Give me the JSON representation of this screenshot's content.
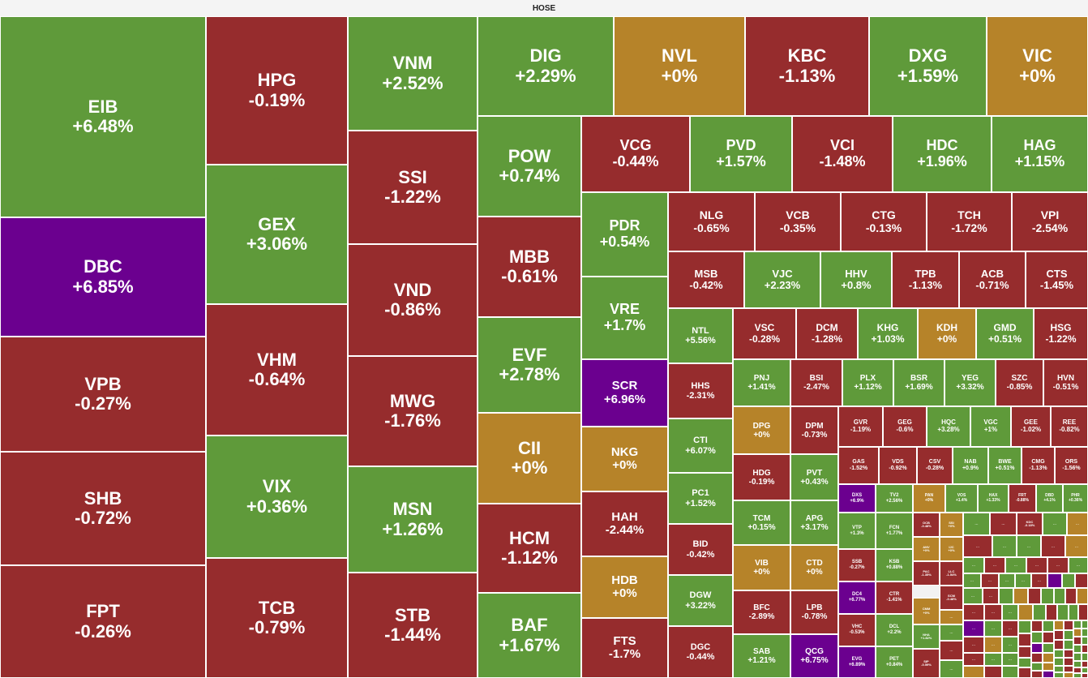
{
  "header": {
    "title": "HOSE"
  },
  "colors": {
    "up": "#5f9a3a",
    "down": "#962c2d",
    "flat": "#b68329",
    "ceiling": "#6b008f"
  },
  "ellipsis": "...",
  "tiles": [
    {
      "id": "eib",
      "sym": "EIB",
      "pct": "+6.48%",
      "c": "up"
    },
    {
      "id": "dbc",
      "sym": "DBC",
      "pct": "+6.85%",
      "c": "ceiling"
    },
    {
      "id": "vpb",
      "sym": "VPB",
      "pct": "-0.27%",
      "c": "down"
    },
    {
      "id": "shb",
      "sym": "SHB",
      "pct": "-0.72%",
      "c": "down"
    },
    {
      "id": "fpt",
      "sym": "FPT",
      "pct": "-0.26%",
      "c": "down"
    },
    {
      "id": "hpg",
      "sym": "HPG",
      "pct": "-0.19%",
      "c": "down"
    },
    {
      "id": "gex",
      "sym": "GEX",
      "pct": "+3.06%",
      "c": "up"
    },
    {
      "id": "vhm",
      "sym": "VHM",
      "pct": "-0.64%",
      "c": "down"
    },
    {
      "id": "vix",
      "sym": "VIX",
      "pct": "+0.36%",
      "c": "up"
    },
    {
      "id": "tcb",
      "sym": "TCB",
      "pct": "-0.79%",
      "c": "down"
    },
    {
      "id": "vnm",
      "sym": "VNM",
      "pct": "+2.52%",
      "c": "up"
    },
    {
      "id": "ssi",
      "sym": "SSI",
      "pct": "-1.22%",
      "c": "down"
    },
    {
      "id": "vnd",
      "sym": "VND",
      "pct": "-0.86%",
      "c": "down"
    },
    {
      "id": "mwg",
      "sym": "MWG",
      "pct": "-1.76%",
      "c": "down"
    },
    {
      "id": "msn",
      "sym": "MSN",
      "pct": "+1.26%",
      "c": "up"
    },
    {
      "id": "stb",
      "sym": "STB",
      "pct": "-1.44%",
      "c": "down"
    },
    {
      "id": "dig",
      "sym": "DIG",
      "pct": "+2.29%",
      "c": "up"
    },
    {
      "id": "pow",
      "sym": "POW",
      "pct": "+0.74%",
      "c": "up"
    },
    {
      "id": "mbb",
      "sym": "MBB",
      "pct": "-0.61%",
      "c": "down"
    },
    {
      "id": "evf",
      "sym": "EVF",
      "pct": "+2.78%",
      "c": "up"
    },
    {
      "id": "cii",
      "sym": "CII",
      "pct": "+0%",
      "c": "flat"
    },
    {
      "id": "hcm",
      "sym": "HCM",
      "pct": "-1.12%",
      "c": "down"
    },
    {
      "id": "baf",
      "sym": "BAF",
      "pct": "+1.67%",
      "c": "up"
    },
    {
      "id": "nvl",
      "sym": "NVL",
      "pct": "+0%",
      "c": "flat"
    },
    {
      "id": "kbc",
      "sym": "KBC",
      "pct": "-1.13%",
      "c": "down"
    },
    {
      "id": "dxg",
      "sym": "DXG",
      "pct": "+1.59%",
      "c": "up"
    },
    {
      "id": "vic",
      "sym": "VIC",
      "pct": "+0%",
      "c": "flat"
    },
    {
      "id": "vcg",
      "sym": "VCG",
      "pct": "-0.44%",
      "c": "down"
    },
    {
      "id": "pvd",
      "sym": "PVD",
      "pct": "+1.57%",
      "c": "up"
    },
    {
      "id": "vci",
      "sym": "VCI",
      "pct": "-1.48%",
      "c": "down"
    },
    {
      "id": "hdc",
      "sym": "HDC",
      "pct": "+1.96%",
      "c": "up"
    },
    {
      "id": "hag",
      "sym": "HAG",
      "pct": "+1.15%",
      "c": "up"
    },
    {
      "id": "pdr",
      "sym": "PDR",
      "pct": "+0.54%",
      "c": "up"
    },
    {
      "id": "vre",
      "sym": "VRE",
      "pct": "+1.7%",
      "c": "up"
    },
    {
      "id": "scr",
      "sym": "SCR",
      "pct": "+6.96%",
      "c": "ceiling"
    },
    {
      "id": "nkg",
      "sym": "NKG",
      "pct": "+0%",
      "c": "flat"
    },
    {
      "id": "hah",
      "sym": "HAH",
      "pct": "-2.44%",
      "c": "down"
    },
    {
      "id": "hdb",
      "sym": "HDB",
      "pct": "+0%",
      "c": "flat"
    },
    {
      "id": "fts",
      "sym": "FTS",
      "pct": "-1.7%",
      "c": "down"
    },
    {
      "id": "nlg",
      "sym": "NLG",
      "pct": "-0.65%",
      "c": "down"
    },
    {
      "id": "vcb",
      "sym": "VCB",
      "pct": "-0.35%",
      "c": "down"
    },
    {
      "id": "ctg",
      "sym": "CTG",
      "pct": "-0.13%",
      "c": "down"
    },
    {
      "id": "tch",
      "sym": "TCH",
      "pct": "-1.72%",
      "c": "down"
    },
    {
      "id": "vpi",
      "sym": "VPI",
      "pct": "-2.54%",
      "c": "down"
    },
    {
      "id": "msb",
      "sym": "MSB",
      "pct": "-0.42%",
      "c": "down"
    },
    {
      "id": "vjc",
      "sym": "VJC",
      "pct": "+2.23%",
      "c": "up"
    },
    {
      "id": "hhv",
      "sym": "HHV",
      "pct": "+0.8%",
      "c": "up"
    },
    {
      "id": "tpb",
      "sym": "TPB",
      "pct": "-1.13%",
      "c": "down"
    },
    {
      "id": "acb",
      "sym": "ACB",
      "pct": "-0.71%",
      "c": "down"
    },
    {
      "id": "cts",
      "sym": "CTS",
      "pct": "-1.45%",
      "c": "down"
    },
    {
      "id": "ntl",
      "sym": "NTL",
      "pct": "+5.56%",
      "c": "up"
    },
    {
      "id": "hhs",
      "sym": "HHS",
      "pct": "-2.31%",
      "c": "down"
    },
    {
      "id": "cti",
      "sym": "CTI",
      "pct": "+6.07%",
      "c": "up"
    },
    {
      "id": "pc1",
      "sym": "PC1",
      "pct": "+1.52%",
      "c": "up"
    },
    {
      "id": "bid",
      "sym": "BID",
      "pct": "-0.42%",
      "c": "down"
    },
    {
      "id": "dgw",
      "sym": "DGW",
      "pct": "+3.22%",
      "c": "up"
    },
    {
      "id": "dgc",
      "sym": "DGC",
      "pct": "-0.44%",
      "c": "down"
    },
    {
      "id": "vsc",
      "sym": "VSC",
      "pct": "-0.28%",
      "c": "down"
    },
    {
      "id": "dcm",
      "sym": "DCM",
      "pct": "-1.28%",
      "c": "down"
    },
    {
      "id": "khg",
      "sym": "KHG",
      "pct": "+1.03%",
      "c": "up"
    },
    {
      "id": "kdh",
      "sym": "KDH",
      "pct": "+0%",
      "c": "flat"
    },
    {
      "id": "gmd",
      "sym": "GMD",
      "pct": "+0.51%",
      "c": "up"
    },
    {
      "id": "hsg",
      "sym": "HSG",
      "pct": "-1.22%",
      "c": "down"
    },
    {
      "id": "pnj",
      "sym": "PNJ",
      "pct": "+1.41%",
      "c": "up"
    },
    {
      "id": "bsi",
      "sym": "BSI",
      "pct": "-2.47%",
      "c": "down"
    },
    {
      "id": "plx",
      "sym": "PLX",
      "pct": "+1.12%",
      "c": "up"
    },
    {
      "id": "bsr",
      "sym": "BSR",
      "pct": "+1.69%",
      "c": "up"
    },
    {
      "id": "yeg",
      "sym": "YEG",
      "pct": "+3.32%",
      "c": "up"
    },
    {
      "id": "szc",
      "sym": "SZC",
      "pct": "-0.85%",
      "c": "down"
    },
    {
      "id": "hvn",
      "sym": "HVN",
      "pct": "-0.51%",
      "c": "down"
    },
    {
      "id": "dpg",
      "sym": "DPG",
      "pct": "+0%",
      "c": "flat"
    },
    {
      "id": "dpm",
      "sym": "DPM",
      "pct": "-0.73%",
      "c": "down"
    },
    {
      "id": "hdg",
      "sym": "HDG",
      "pct": "-0.19%",
      "c": "down"
    },
    {
      "id": "pvt",
      "sym": "PVT",
      "pct": "+0.43%",
      "c": "up"
    },
    {
      "id": "tcm",
      "sym": "TCM",
      "pct": "+0.15%",
      "c": "up"
    },
    {
      "id": "apg",
      "sym": "APG",
      "pct": "+3.17%",
      "c": "up"
    },
    {
      "id": "vib",
      "sym": "VIB",
      "pct": "+0%",
      "c": "flat"
    },
    {
      "id": "ctd",
      "sym": "CTD",
      "pct": "+0%",
      "c": "flat"
    },
    {
      "id": "bfc",
      "sym": "BFC",
      "pct": "-2.89%",
      "c": "down"
    },
    {
      "id": "lpb",
      "sym": "LPB",
      "pct": "-0.78%",
      "c": "down"
    },
    {
      "id": "sab",
      "sym": "SAB",
      "pct": "+1.21%",
      "c": "up"
    },
    {
      "id": "qcg",
      "sym": "QCG",
      "pct": "+6.75%",
      "c": "ceiling"
    },
    {
      "id": "gvr",
      "sym": "GVR",
      "pct": "-1.19%",
      "c": "down"
    },
    {
      "id": "geg",
      "sym": "GEG",
      "pct": "-0.6%",
      "c": "down"
    },
    {
      "id": "hqc",
      "sym": "HQC",
      "pct": "+3.28%",
      "c": "up"
    },
    {
      "id": "vgc",
      "sym": "VGC",
      "pct": "+1%",
      "c": "up"
    },
    {
      "id": "gee",
      "sym": "GEE",
      "pct": "-1.02%",
      "c": "down"
    },
    {
      "id": "ree",
      "sym": "REE",
      "pct": "-0.82%",
      "c": "down"
    },
    {
      "id": "gas",
      "sym": "GAS",
      "pct": "-1.52%",
      "c": "down"
    },
    {
      "id": "vds",
      "sym": "VDS",
      "pct": "-0.92%",
      "c": "down"
    },
    {
      "id": "csv",
      "sym": "CSV",
      "pct": "-0.28%",
      "c": "down"
    },
    {
      "id": "nab",
      "sym": "NAB",
      "pct": "+0.9%",
      "c": "up"
    },
    {
      "id": "bwe",
      "sym": "BWE",
      "pct": "+0.51%",
      "c": "up"
    },
    {
      "id": "cmg",
      "sym": "CMG",
      "pct": "-1.13%",
      "c": "down"
    },
    {
      "id": "ors",
      "sym": "ORS",
      "pct": "-1.56%",
      "c": "down"
    },
    {
      "id": "dxs",
      "sym": "DXS",
      "pct": "+6.9%",
      "c": "ceiling"
    },
    {
      "id": "tv2",
      "sym": "TV2",
      "pct": "+2.56%",
      "c": "up"
    },
    {
      "id": "pan",
      "sym": "PAN",
      "pct": "+0%",
      "c": "flat"
    },
    {
      "id": "vos",
      "sym": "VOS",
      "pct": "+1.4%",
      "c": "up"
    },
    {
      "id": "hax",
      "sym": "HAX",
      "pct": "+1.33%",
      "c": "up"
    },
    {
      "id": "frt",
      "sym": "FRT",
      "pct": "-0.88%",
      "c": "down"
    },
    {
      "id": "dbd",
      "sym": "DBD",
      "pct": "+4.1%",
      "c": "up"
    },
    {
      "id": "phr",
      "sym": "PHR",
      "pct": "+0.36%",
      "c": "up"
    },
    {
      "id": "vtp",
      "sym": "VTP",
      "pct": "+1.3%",
      "c": "up"
    },
    {
      "id": "fcn",
      "sym": "FCN",
      "pct": "+1.77%",
      "c": "up"
    },
    {
      "id": "ssb",
      "sym": "SSB",
      "pct": "-0.27%",
      "c": "down"
    },
    {
      "id": "ksb",
      "sym": "KSB",
      "pct": "+0.88%",
      "c": "up"
    },
    {
      "id": "dc4",
      "sym": "DC4",
      "pct": "+6.77%",
      "c": "ceiling"
    },
    {
      "id": "ctr",
      "sym": "CTR",
      "pct": "-1.41%",
      "c": "down"
    },
    {
      "id": "vhc",
      "sym": "VHC",
      "pct": "-0.53%",
      "c": "down"
    },
    {
      "id": "dcl",
      "sym": "DCL",
      "pct": "+2.2%",
      "c": "up"
    },
    {
      "id": "evg",
      "sym": "EVG",
      "pct": "+6.89%",
      "c": "ceiling"
    },
    {
      "id": "pet",
      "sym": "PET",
      "pct": "+0.84%",
      "c": "up"
    },
    {
      "id": "ocb",
      "sym": "OCB",
      "pct": "-0.48%",
      "c": "down"
    },
    {
      "id": "ssi2",
      "sym": "SSI",
      "pct": "+0%",
      "c": "flat"
    },
    {
      "id": "anv",
      "sym": "ANV",
      "pct": "+0%",
      "c": "flat"
    },
    {
      "id": "ijc",
      "sym": "IJC",
      "pct": "+0%",
      "c": "flat"
    },
    {
      "id": "pac",
      "sym": "PAC",
      "pct": "-1.35%",
      "c": "down"
    },
    {
      "id": "llc",
      "sym": "LLC",
      "pct": "-1.54%",
      "c": "down"
    },
    {
      "id": "scm",
      "sym": "SCM",
      "pct": "-0.48%",
      "c": "down"
    },
    {
      "id": "cmm",
      "sym": "CMM",
      "pct": "+0%",
      "c": "flat"
    },
    {
      "id": "nha",
      "sym": "NHA",
      "pct": "+1.82%",
      "c": "up"
    },
    {
      "id": "sip",
      "sym": "SIP",
      "pct": "-0.59%",
      "c": "down"
    },
    {
      "id": "kdc",
      "sym": "KDC",
      "pct": "-0.18%",
      "c": "down"
    }
  ]
}
